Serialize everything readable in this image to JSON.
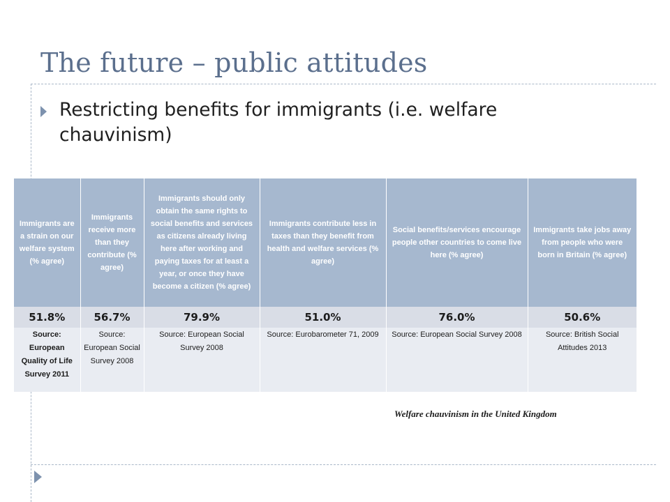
{
  "slide": {
    "title": "The future – public attitudes",
    "bullet": "Restricting benefits for immigrants (i.e. welfare chauvinism)",
    "caption": "Welfare chauvinism in the United Kingdom"
  },
  "table": {
    "headers": [
      "Immigrants are a strain on our welfare system (% agree)",
      "Immigrants receive more than they contribute (% agree)",
      "Immigrants should only obtain the same rights to social benefits and services as citizens already living here after working and paying taxes for at least a year, or once they have become a citizen (% agree)",
      "Immigrants contribute less in taxes than they benefit from health and welfare services (% agree)",
      "Social benefits/services encourage people other countries to come live here (% agree)",
      "Immigrants take jobs away from people who were born in Britain  (% agree)"
    ],
    "values": [
      "51.8%",
      "56.7%",
      "79.9%",
      "51.0%",
      "76.0%",
      "50.6%"
    ],
    "sources": [
      "Source: European Quality of Life Survey 2011",
      "Source: European Social Survey 2008",
      "Source: European Social Survey 2008",
      "Source: Eurobarometer 71, 2009",
      "Source: European Social Survey 2008",
      "Source: British Social Attitudes 2013"
    ]
  },
  "colors": {
    "title": "#5b6f8d",
    "header_bg": "#a6b8cf",
    "value_row_bg": "#d9dde6",
    "source_row_bg": "#e9ecf2",
    "bullet_marker": "#7d92ae"
  },
  "icons": {
    "bullet": "triangle-bullet-icon",
    "footer": "triangle-footer-icon"
  }
}
